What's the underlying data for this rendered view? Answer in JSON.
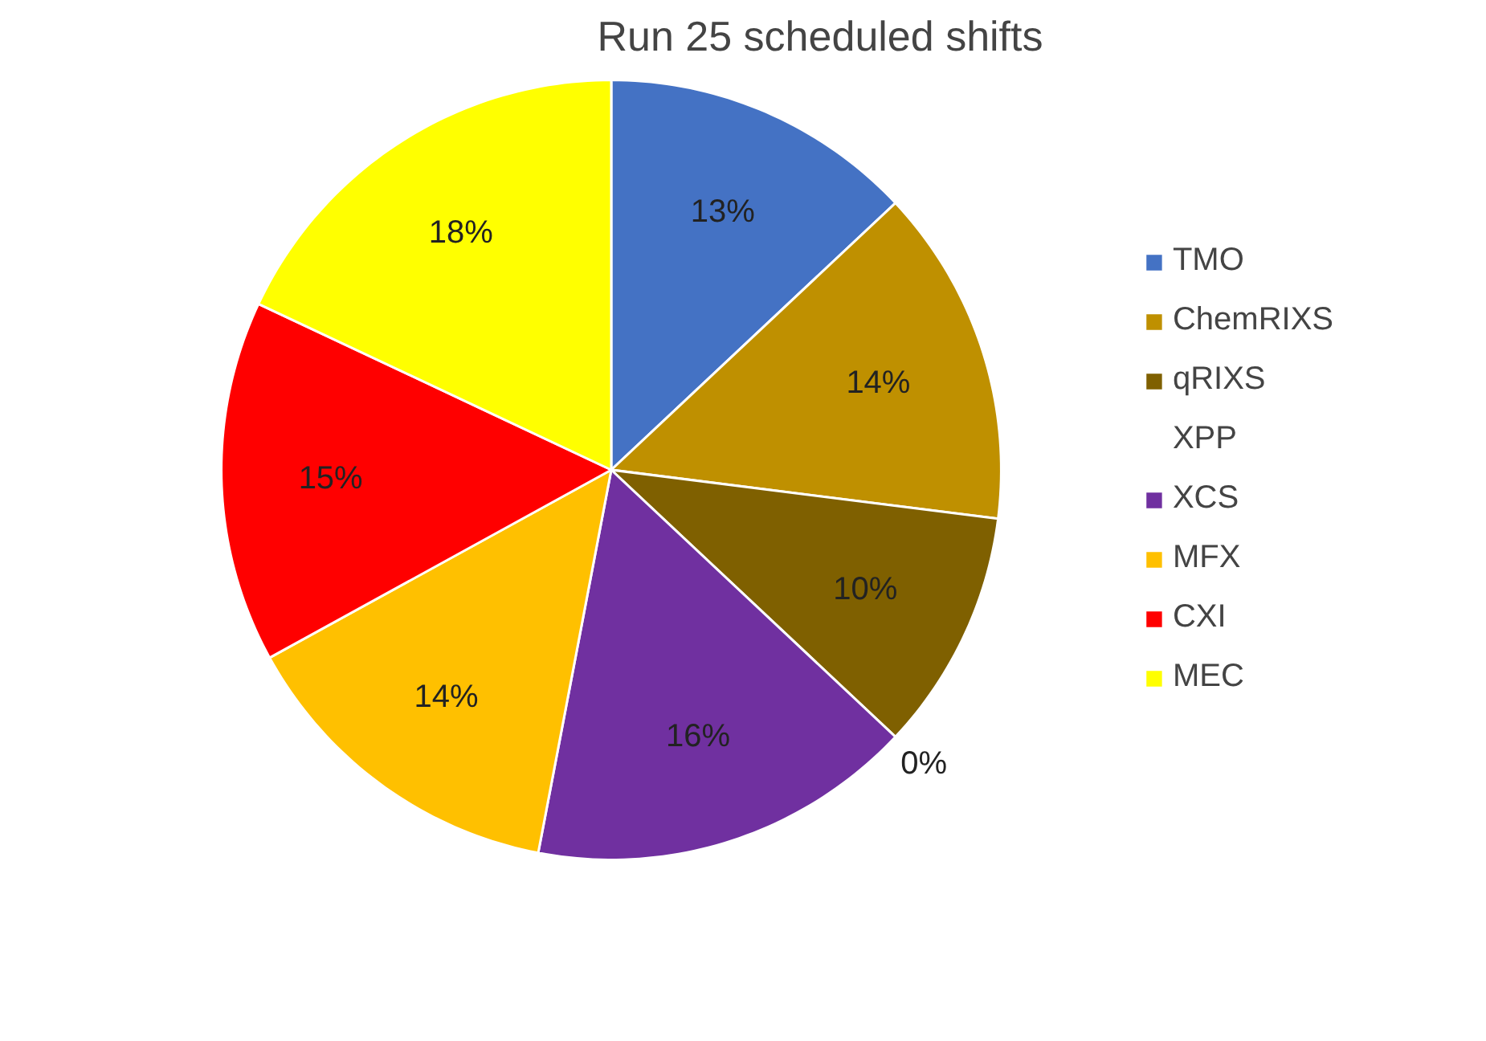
{
  "chart_data": {
    "type": "pie",
    "title": "Run 25 scheduled shifts",
    "categories": [
      "TMO",
      "ChemRIXS",
      "qRIXS",
      "XPP",
      "XCS",
      "MFX",
      "CXI",
      "MEC"
    ],
    "values": [
      13,
      14,
      10,
      0,
      16,
      14,
      15,
      18
    ],
    "value_labels": [
      "13%",
      "14%",
      "10%",
      "0%",
      "16%",
      "14%",
      "15%",
      "18%"
    ],
    "colors": [
      "#4472c4",
      "#bf9000",
      "#7f6000",
      "#70ad47",
      "#7030a0",
      "#ffc000",
      "#ff0000",
      "#ffff00"
    ],
    "legend": "right"
  }
}
